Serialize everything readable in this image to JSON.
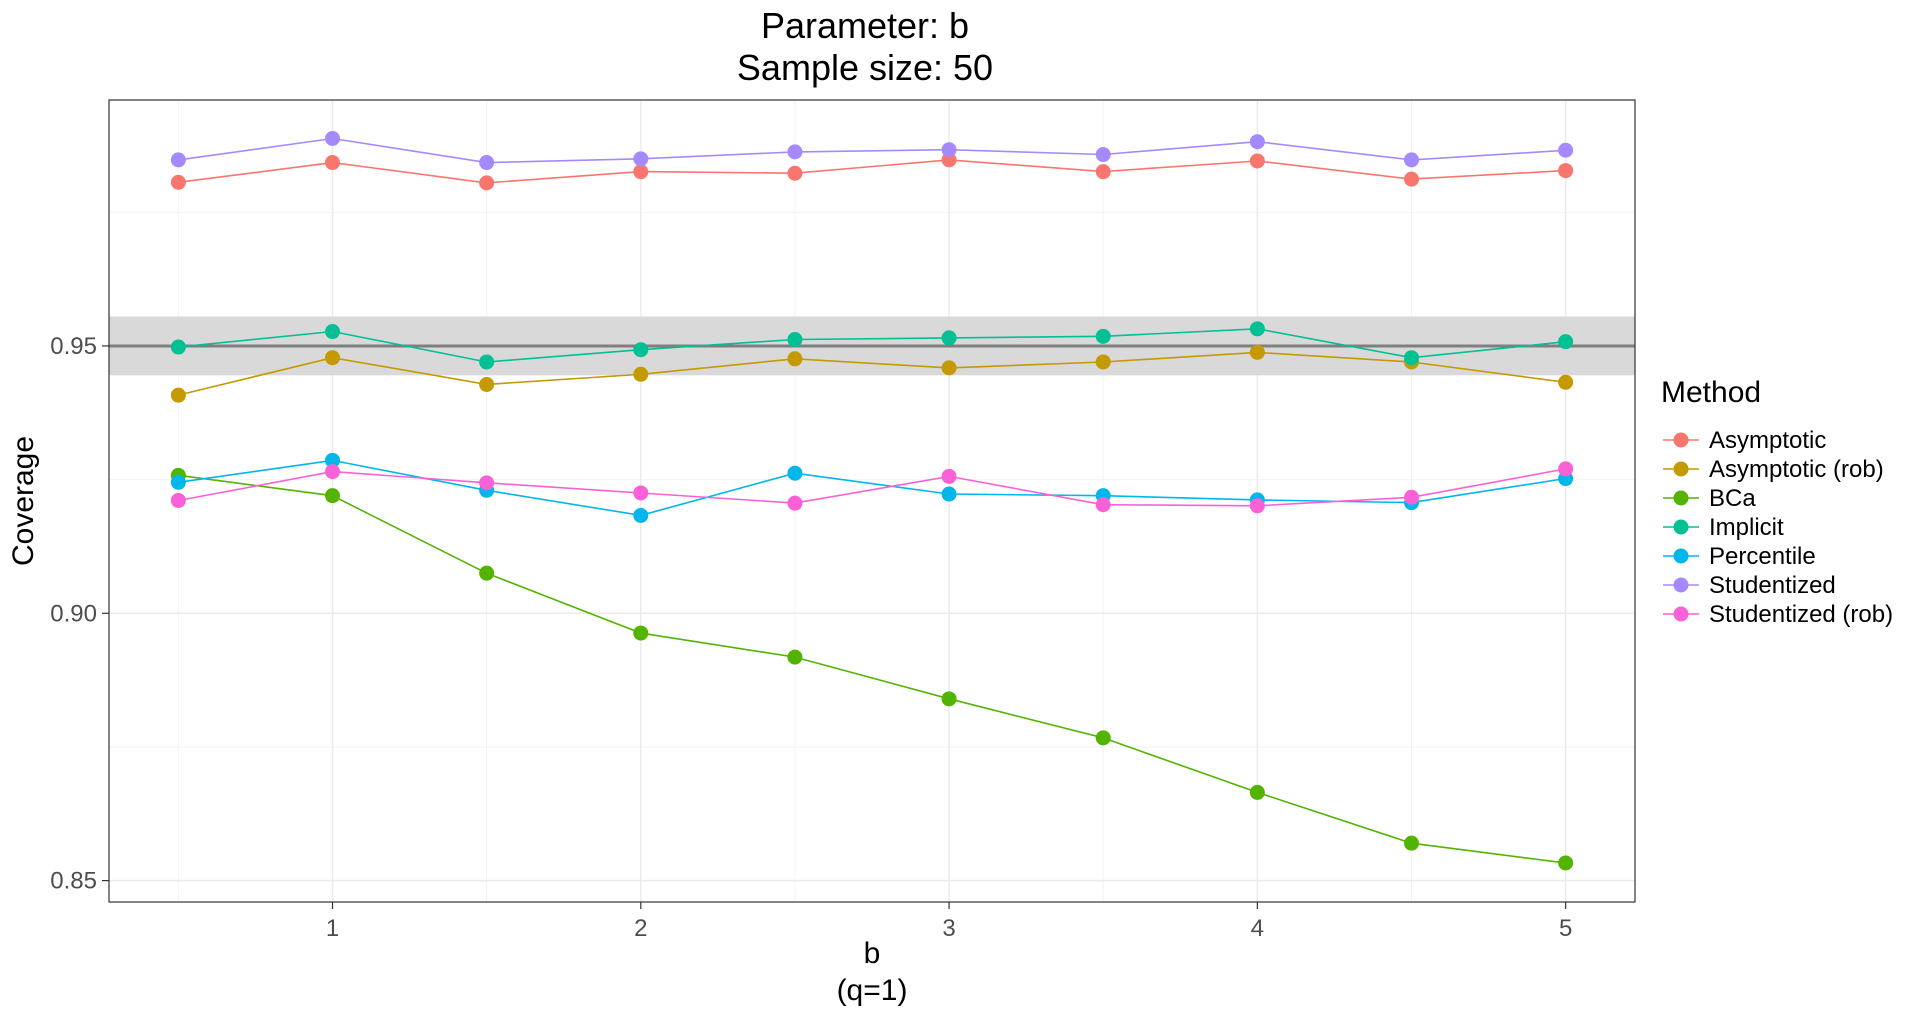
{
  "chart_data": {
    "type": "line",
    "title": [
      "Parameter: b",
      "Sample size: 50"
    ],
    "xlabel": [
      "b",
      "(q=1)"
    ],
    "ylabel": "Coverage",
    "x": [
      0.5,
      1,
      1.5,
      2,
      2.5,
      3,
      3.5,
      4,
      4.5,
      5
    ],
    "x_ticks": [
      1,
      2,
      3,
      4,
      5
    ],
    "x_tick_labels": [
      "1",
      "2",
      "3",
      "4",
      "5"
    ],
    "xlim": [
      0.275,
      5.225
    ],
    "ylim": [
      0.846,
      0.996
    ],
    "y_ticks": [
      0.85,
      0.9,
      0.95
    ],
    "y_tick_labels": [
      "0.85",
      "0.90",
      "0.95"
    ],
    "y_minor_ticks": [
      0.875,
      0.925,
      0.975
    ],
    "grid": true,
    "reference_line": 0.95,
    "reference_band": [
      0.9445,
      0.9555
    ],
    "legend_title": "Method",
    "legend_position": "right",
    "series": [
      {
        "name": "Asymptotic",
        "color": "#F8766D",
        "values": [
          0.9806,
          0.9843,
          0.9805,
          0.9826,
          0.9823,
          0.9848,
          0.9826,
          0.9846,
          0.9812,
          0.9828
        ]
      },
      {
        "name": "Asymptotic (rob)",
        "color": "#C49A00",
        "values": [
          0.9408,
          0.9478,
          0.9428,
          0.9447,
          0.9476,
          0.9459,
          0.947,
          0.9488,
          0.947,
          0.9432
        ]
      },
      {
        "name": "BCa",
        "color": "#53B400",
        "values": [
          0.9258,
          0.922,
          0.9075,
          0.8963,
          0.8918,
          0.884,
          0.8767,
          0.8665,
          0.857,
          0.8533
        ]
      },
      {
        "name": "Implicit",
        "color": "#00C094",
        "values": [
          0.9498,
          0.9527,
          0.947,
          0.9493,
          0.9512,
          0.9515,
          0.9518,
          0.9532,
          0.9478,
          0.9508
        ]
      },
      {
        "name": "Percentile",
        "color": "#00B6EB",
        "values": [
          0.9245,
          0.9286,
          0.923,
          0.9183,
          0.9262,
          0.9223,
          0.922,
          0.9212,
          0.9207,
          0.9252
        ]
      },
      {
        "name": "Studentized",
        "color": "#A58AFF",
        "values": [
          0.9848,
          0.9888,
          0.9843,
          0.985,
          0.9863,
          0.9867,
          0.9858,
          0.9882,
          0.9848,
          0.9866
        ]
      },
      {
        "name": "Studentized (rob)",
        "color": "#FB61D7",
        "values": [
          0.9211,
          0.9265,
          0.9244,
          0.9225,
          0.9206,
          0.9256,
          0.9203,
          0.9201,
          0.9217,
          0.927
        ]
      }
    ]
  }
}
